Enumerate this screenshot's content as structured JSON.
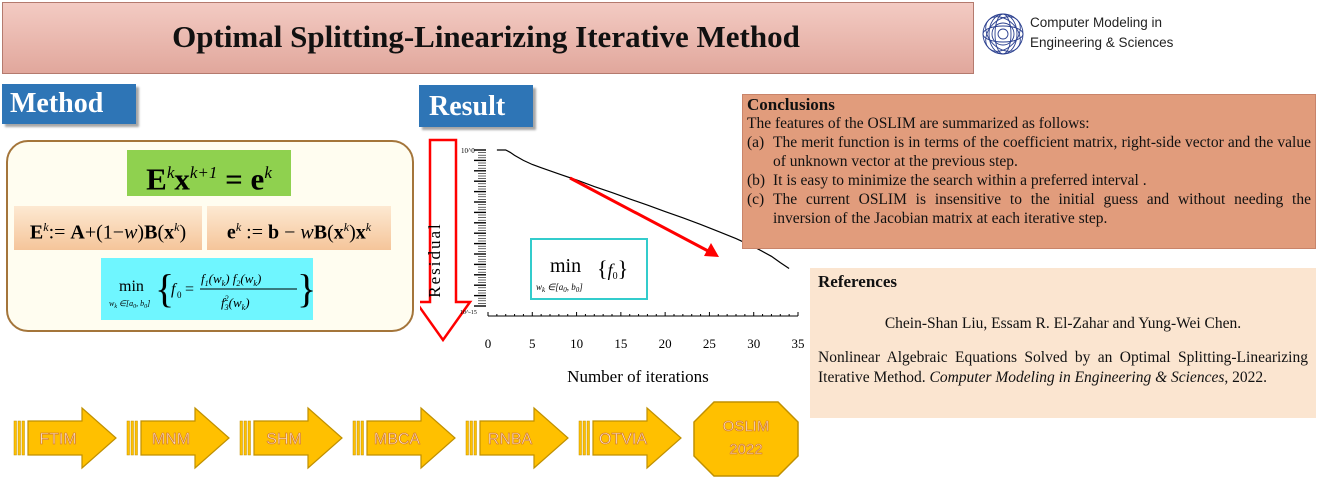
{
  "title": "Optimal Splitting-Linearizing Iterative Method",
  "journal": {
    "line1": "Computer Modeling in",
    "line2": "Engineering & Sciences",
    "logo_icon": "journal-globe-logo"
  },
  "method": {
    "heading": "Method",
    "equation_main": "E^k x^{k+1} = e^k",
    "equation_left": "E^k := A + (1 − w) B(x^k)",
    "equation_right": "e^k := b − w B(x^k) x^k",
    "equation_min": "min_{w_k ∈ [a_0, b_0]} { f_0 = f_1(w_k) f_2(w_k) / f_3^2(w_k) }"
  },
  "result": {
    "heading": "Result",
    "chart_box_label": "min_{w_k ∈ [a_0, b_0]} {f_0}"
  },
  "chart_data": {
    "type": "line",
    "xlabel": "Number of iterations",
    "ylabel": "Residual",
    "xlim": [
      0,
      35
    ],
    "xticks": [
      0,
      5,
      10,
      15,
      20,
      25,
      30,
      35
    ],
    "y_scale": "log",
    "ytick_top_label": "10^0",
    "ytick_bottom_label": "10^-15",
    "series": [
      {
        "x": [
          1,
          2,
          2.5,
          3,
          4,
          5,
          6,
          8,
          10,
          12,
          14,
          16,
          18,
          20,
          22,
          24,
          26,
          28,
          30,
          32,
          33,
          34
        ],
        "y": [
          1,
          1,
          0.6,
          0.3,
          0.1,
          0.04,
          0.02,
          0.005,
          0.0013,
          0.0003,
          8e-05,
          2e-05,
          5e-06,
          1.2e-06,
          3e-07,
          7e-08,
          1.5e-08,
          3e-09,
          5e-10,
          6e-11,
          1.5e-11,
          4e-12
        ]
      }
    ],
    "colors": {
      "line": "#000000",
      "trend_arrow": "#ff0000",
      "axis_arrow": "#ff0000",
      "box_border": "#33cccc"
    }
  },
  "conclusions": {
    "title": "Conclusions",
    "intro": "The features of the OSLIM are summarized as follows:",
    "items": [
      {
        "label": "(a)",
        "text": "The merit function is in terms of the coefficient matrix, right-side vector and the value of unknown vector at the previous step."
      },
      {
        "label": "(b)",
        "text": "It is easy to minimize the search within a preferred interval ."
      },
      {
        "label": "(c)",
        "text": "The current OSLIM is insensitive to the initial guess and without needing the inversion of the Jacobian matrix at each iterative step."
      }
    ]
  },
  "references": {
    "title": "References",
    "authors": "Chein-Shan Liu, Essam R. El-Zahar and Yung-Wei Chen.",
    "body_plain": "Nonlinear Algebraic Equations Solved by an Optimal Splitting-Linearizing Iterative Method.",
    "journal_italic": "Computer Modeling in Engineering & Sciences",
    "year": ", 2022."
  },
  "methods_timeline": {
    "items": [
      "FTIM",
      "MNM",
      "SHM",
      "MBCA",
      "RNBA",
      "OTVIA"
    ],
    "final_line1": "OSLIM",
    "final_line2": "2022",
    "colors": {
      "fill": "#ffc000",
      "border": "#c09000",
      "text": "#ffffff",
      "text_stroke": "#d9822b"
    }
  },
  "colors": {
    "title_bar": "#eab1a6",
    "heading_blue": "#2e75b6",
    "equation_green": "#8fd14f",
    "equation_cyan": "#6ff6ff",
    "conclusions_bg": "#e19c7c",
    "references_bg": "#fbe5d0"
  }
}
